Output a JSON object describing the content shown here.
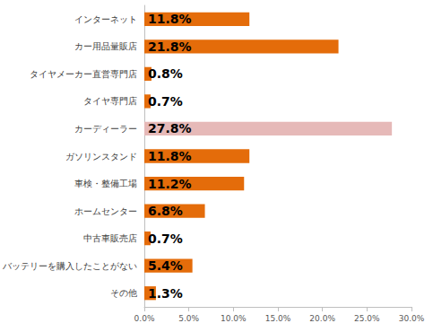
{
  "chart_data": {
    "type": "bar",
    "orientation": "horizontal",
    "categories": [
      "インターネット",
      "カー用品量販店",
      "タイヤメーカー直営専門店",
      "タイヤ専門店",
      "カーディーラー",
      "ガソリンスタンド",
      "車検・整備工場",
      "ホームセンター",
      "中古車販売店",
      "バッテリーを購入したことがない",
      "その他"
    ],
    "values": [
      11.8,
      21.8,
      0.8,
      0.7,
      27.8,
      11.8,
      11.2,
      6.8,
      0.7,
      5.4,
      1.3
    ],
    "value_labels": [
      "11.8%",
      "21.8%",
      "0.8%",
      "0.7%",
      "27.8%",
      "11.8%",
      "11.2%",
      "6.8%",
      "0.7%",
      "5.4%",
      "1.3%"
    ],
    "colors": [
      "#e46c0a",
      "#e46c0a",
      "#e46c0a",
      "#e46c0a",
      "#e6b9b8",
      "#e46c0a",
      "#e46c0a",
      "#e46c0a",
      "#e46c0a",
      "#e46c0a",
      "#e46c0a"
    ],
    "xlim": [
      0,
      30
    ],
    "xticks": [
      {
        "value": 0,
        "label": "0.0%"
      },
      {
        "value": 5,
        "label": "5.0%"
      },
      {
        "value": 10,
        "label": "10.0%"
      },
      {
        "value": 15,
        "label": "15.0%"
      },
      {
        "value": 20,
        "label": "20.0%"
      },
      {
        "value": 25,
        "label": "25.0%"
      },
      {
        "value": 30,
        "label": "30.0%"
      }
    ],
    "grid": false,
    "data_labels": true
  }
}
